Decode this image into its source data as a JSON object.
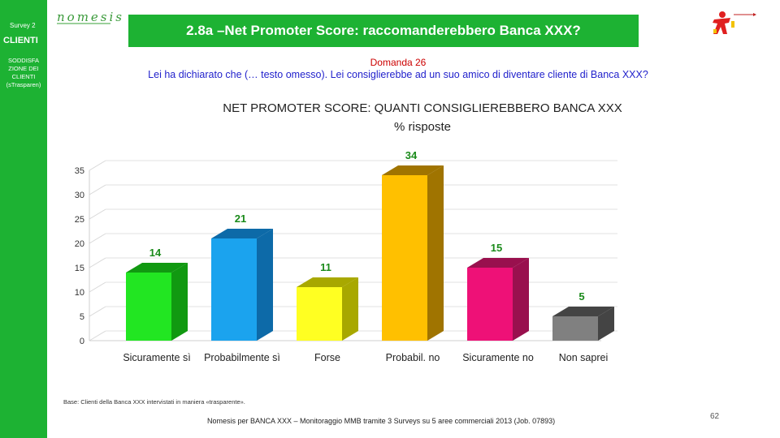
{
  "sidebar": {
    "survey": "Survey 2",
    "section": "CLIENTI",
    "topic": "SODDISFA ZIONE DEI CLIENTI",
    "note": "(sTrasparen)"
  },
  "header": {
    "logo": "nomesis",
    "title": "2.8a –Net Promoter Score: raccomanderebbero Banca XXX?"
  },
  "question": {
    "number": "Domanda 26",
    "text": "Lei ha dichiarato che (… testo omesso). Lei consiglierebbe ad un suo amico di diventare cliente di Banca XXX?"
  },
  "chart_heading": {
    "line1": "NET PROMOTER SCORE: QUANTI CONSIGLIEREBBERO BANCA XXX",
    "line2": "% risposte"
  },
  "chart_data": {
    "type": "bar",
    "categories": [
      "Sicuramente sì",
      "Probabilmente sì",
      "Forse",
      "Probabil. no",
      "Sicuramente no",
      "Non saprei"
    ],
    "values": [
      14,
      21,
      11,
      34,
      15,
      5
    ],
    "ylim": [
      0,
      35
    ],
    "yticks": [
      0,
      5,
      10,
      15,
      20,
      25,
      30,
      35
    ],
    "grid": true,
    "colors": [
      "#22e622",
      "#1ba3ee",
      "#ffff22",
      "#ffc000",
      "#ee1177",
      "#808080"
    ],
    "side_colors": [
      "#119911",
      "#0d6aa8",
      "#a8a800",
      "#a07400",
      "#99104e",
      "#444444"
    ],
    "top_colors": [
      "#119911",
      "#0d6aa8",
      "#a8a800",
      "#a07400",
      "#99104e",
      "#444444"
    ],
    "label_color": "#1a8a1a"
  },
  "base_note": "Base: Clienti della Banca XXX intervistati in maniera «trasparente».",
  "footer": "Nomesis per BANCA XXX – Monitoraggio MMB tramite 3 Surveys su 5 aree commerciali 2013 (Job. 07893)",
  "page_number": "62"
}
